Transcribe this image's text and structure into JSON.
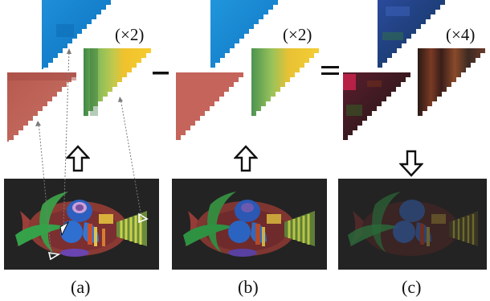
{
  "figure": {
    "scale_labels": [
      "(×2)",
      "(×2)",
      "(×4)"
    ],
    "captions": [
      "(a)",
      "(b)",
      "(c)"
    ],
    "operators": [
      "minus",
      "equals"
    ],
    "arrows": [
      "up",
      "up",
      "down"
    ]
  }
}
